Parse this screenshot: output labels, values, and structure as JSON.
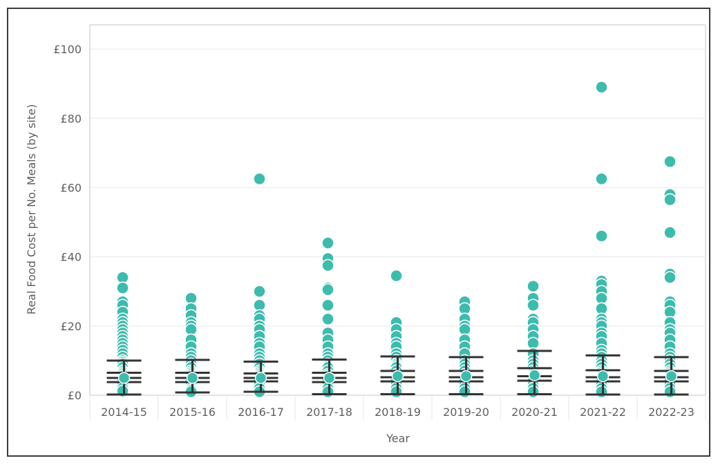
{
  "chart_data": {
    "type": "scatter",
    "title": "",
    "xlabel": "Year",
    "ylabel": "Real Food Cost per No. Meals (by site)",
    "ylim": [
      0,
      107
    ],
    "y_ticks": [
      {
        "value": 0,
        "label": "£0"
      },
      {
        "value": 20,
        "label": "£20"
      },
      {
        "value": 40,
        "label": "£40"
      },
      {
        "value": 60,
        "label": "£60"
      },
      {
        "value": 80,
        "label": "£80"
      },
      {
        "value": 100,
        "label": "£100"
      }
    ],
    "grid": true,
    "point_color": "#3dbcad",
    "whisker_color": "#333333",
    "categories": [
      "2014-15",
      "2015-16",
      "2016-17",
      "2017-18",
      "2018-19",
      "2019-20",
      "2020-21",
      "2021-22",
      "2022-23"
    ],
    "points": [
      [
        34,
        31,
        27,
        26,
        24,
        22,
        21,
        20,
        19,
        18,
        17,
        16,
        15,
        14,
        13,
        12,
        11,
        10,
        9.5,
        9,
        8,
        7,
        6.5,
        6,
        5.5,
        5,
        4.5,
        4,
        3,
        2,
        1.2
      ],
      [
        28,
        25,
        23,
        21,
        20,
        19,
        16,
        14,
        12,
        11,
        10,
        9,
        8,
        7,
        6.5,
        6,
        5.5,
        5,
        4.5,
        4,
        3,
        2,
        1.5,
        1
      ],
      [
        62.5,
        30,
        26,
        23,
        22,
        20,
        19,
        17,
        15,
        14,
        12,
        11,
        10,
        9,
        8,
        7,
        6.5,
        6,
        5.5,
        5,
        4.5,
        4,
        3,
        2,
        1
      ],
      [
        44,
        39.5,
        37.5,
        31,
        30.5,
        26,
        22,
        18,
        16,
        14,
        12,
        11,
        10,
        9,
        8.5,
        8,
        7,
        6,
        5.5,
        5,
        4.5,
        4,
        3,
        2,
        1
      ],
      [
        34.5,
        21,
        19,
        17,
        15,
        14,
        12,
        11,
        10,
        9,
        8.5,
        8,
        7,
        6,
        5.5,
        5,
        4.5,
        4,
        3,
        2,
        1
      ],
      [
        27,
        25,
        22,
        20,
        19,
        16,
        14,
        12,
        10,
        9,
        8,
        7,
        6,
        5.5,
        5,
        4.5,
        4,
        3,
        2,
        1
      ],
      [
        31.5,
        28,
        26,
        22,
        21,
        19,
        17,
        15,
        12,
        10,
        9,
        8,
        7,
        6.5,
        6,
        5.5,
        5,
        4.5,
        4,
        3,
        2,
        1
      ],
      [
        89,
        62.5,
        46,
        33,
        32,
        30,
        28,
        25,
        22,
        21,
        20,
        18,
        17,
        15,
        13,
        12,
        11,
        10,
        9,
        8,
        7,
        6.5,
        6,
        5.5,
        5,
        4.5,
        4,
        3,
        2,
        1
      ],
      [
        67.5,
        58,
        56.5,
        47,
        35,
        34,
        27,
        26,
        24,
        21,
        19,
        18,
        16,
        14,
        12,
        11,
        10,
        9,
        8,
        7,
        6.5,
        6,
        5.5,
        5,
        4.5,
        4,
        3,
        2,
        1
      ]
    ],
    "whiskers": [
      {
        "lines": [
          10,
          6.5,
          5,
          3.8,
          0.2
        ],
        "center": 5
      },
      {
        "lines": [
          10.2,
          6.5,
          5,
          3.8,
          0.8
        ],
        "center": 5
      },
      {
        "lines": [
          9.7,
          6.3,
          5,
          4,
          1
        ],
        "center": 5
      },
      {
        "lines": [
          10.3,
          6.5,
          5,
          3.8,
          0.3
        ],
        "center": 5
      },
      {
        "lines": [
          11.2,
          7,
          5.2,
          4,
          0.3
        ],
        "center": 5.5
      },
      {
        "lines": [
          11,
          7,
          5.2,
          4,
          0.3
        ],
        "center": 5.5
      },
      {
        "lines": [
          12.8,
          7.8,
          5.5,
          4.2,
          0.3
        ],
        "center": 5.8
      },
      {
        "lines": [
          11.5,
          7.2,
          5.2,
          4,
          0.2
        ],
        "center": 5.5
      },
      {
        "lines": [
          11,
          7,
          5.2,
          4,
          0.2
        ],
        "center": 5.5
      }
    ]
  }
}
